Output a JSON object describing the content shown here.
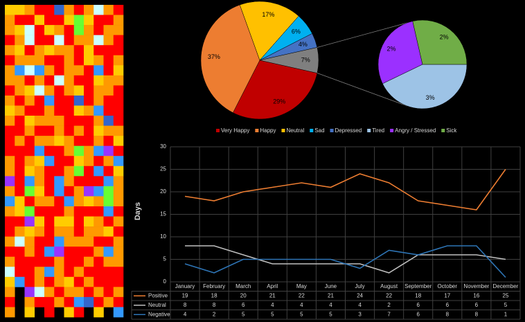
{
  "chart_data": [
    {
      "type": "heatmap",
      "colors": [
        "#ff0000",
        "#ff9900",
        "#ffcc00",
        "#3399ff",
        "#3366cc",
        "#ccffff",
        "#9933ff",
        "#66ff33"
      ],
      "values": [
        [
          2,
          2,
          1,
          0,
          0,
          4,
          1,
          0,
          1,
          5,
          1,
          0
        ],
        [
          1,
          0,
          0,
          2,
          0,
          0,
          2,
          7,
          2,
          0,
          0,
          1
        ],
        [
          1,
          2,
          5,
          0,
          2,
          1,
          0,
          7,
          1,
          0,
          1,
          1
        ],
        [
          0,
          1,
          5,
          0,
          0,
          5,
          0,
          1,
          1,
          5,
          1,
          0
        ],
        [
          1,
          2,
          0,
          1,
          2,
          1,
          1,
          0,
          2,
          0,
          0,
          0
        ],
        [
          0,
          1,
          1,
          1,
          0,
          0,
          1,
          0,
          2,
          1,
          0,
          1
        ],
        [
          1,
          3,
          5,
          3,
          1,
          0,
          1,
          1,
          0,
          3,
          0,
          2
        ],
        [
          1,
          1,
          0,
          1,
          0,
          5,
          1,
          0,
          0,
          2,
          1,
          1
        ],
        [
          0,
          1,
          2,
          5,
          1,
          0,
          1,
          2,
          0,
          1,
          1,
          0
        ],
        [
          1,
          0,
          1,
          0,
          3,
          0,
          0,
          4,
          0,
          1,
          0,
          0
        ],
        [
          2,
          1,
          0,
          0,
          1,
          0,
          0,
          2,
          1,
          3,
          0,
          0
        ],
        [
          1,
          0,
          2,
          1,
          1,
          1,
          0,
          0,
          0,
          1,
          4,
          0
        ],
        [
          0,
          0,
          1,
          0,
          0,
          1,
          0,
          1,
          0,
          2,
          1,
          1
        ],
        [
          0,
          1,
          0,
          1,
          1,
          2,
          1,
          0,
          0,
          1,
          0,
          2
        ],
        [
          0,
          0,
          0,
          3,
          0,
          0,
          1,
          7,
          1,
          3,
          6,
          0
        ],
        [
          1,
          0,
          1,
          2,
          3,
          0,
          0,
          2,
          1,
          0,
          1,
          3
        ],
        [
          1,
          0,
          2,
          1,
          0,
          0,
          1,
          7,
          0,
          3,
          0,
          2
        ],
        [
          6,
          0,
          3,
          1,
          0,
          3,
          1,
          0,
          0,
          0,
          3,
          1
        ],
        [
          1,
          0,
          7,
          2,
          0,
          3,
          0,
          1,
          6,
          3,
          7,
          1
        ],
        [
          3,
          2,
          0,
          1,
          1,
          0,
          3,
          1,
          2,
          1,
          7,
          1
        ],
        [
          1,
          2,
          7,
          0,
          0,
          0,
          1,
          0,
          0,
          0,
          3,
          0
        ],
        [
          0,
          0,
          6,
          2,
          0,
          2,
          2,
          0,
          2,
          1,
          0,
          1
        ],
        [
          0,
          1,
          2,
          1,
          0,
          1,
          1,
          0,
          1,
          1,
          2,
          0
        ],
        [
          1,
          5,
          1,
          0,
          0,
          3,
          1,
          1,
          1,
          0,
          0,
          1
        ],
        [
          0,
          0,
          1,
          0,
          3,
          6,
          0,
          0,
          0,
          1,
          3,
          1
        ],
        [
          1,
          0,
          0,
          0,
          0,
          1,
          0,
          0,
          1,
          0,
          1,
          1
        ],
        [
          5,
          0,
          0,
          1,
          3,
          1,
          0,
          1,
          0,
          0,
          0,
          0
        ],
        [
          2,
          3,
          0,
          1,
          0,
          1,
          2,
          0,
          1,
          0,
          0,
          0
        ],
        [
          1,
          null,
          6,
          5,
          1,
          0,
          1,
          1,
          0,
          1,
          0,
          1
        ],
        [
          0,
          null,
          1,
          0,
          0,
          1,
          0,
          3,
          4,
          0,
          1,
          0
        ],
        [
          1,
          null,
          2,
          null,
          0,
          null,
          2,
          0,
          null,
          2,
          null,
          3
        ]
      ]
    },
    {
      "type": "pie-of-pie",
      "categories": [
        "Very Happy",
        "Happy",
        "Neutral",
        "Sad",
        "Depressed",
        "Tired",
        "Angry / Stressed",
        "Sick"
      ],
      "values": [
        29,
        37,
        17,
        6,
        4,
        3,
        2,
        2
      ],
      "value_labels": [
        "29%",
        "37%",
        "17%",
        "6%",
        "4%",
        "3%",
        "2%",
        "2%"
      ],
      "colors": [
        "#c00000",
        "#ed7d31",
        "#ffc000",
        "#00b0f0",
        "#4472c4",
        "#9dc3e6",
        "#9b30ff",
        "#70ad47"
      ],
      "split": 5,
      "other": {
        "value": 7,
        "label": "7%",
        "color": "#7f7f7f"
      },
      "legend": "bottom"
    },
    {
      "type": "line",
      "y_label": "Days",
      "categories": [
        "January",
        "February",
        "March",
        "April",
        "May",
        "June",
        "July",
        "August",
        "September",
        "October",
        "November",
        "December"
      ],
      "series": [
        {
          "name": "Positive",
          "color": "#ed7d31",
          "values": [
            19,
            18,
            20,
            21,
            22,
            21,
            24,
            22,
            18,
            17,
            16,
            25
          ]
        },
        {
          "name": "Neutral",
          "color": "#bfbfbf",
          "values": [
            8,
            8,
            6,
            4,
            4,
            4,
            4,
            2,
            6,
            6,
            6,
            5
          ]
        },
        {
          "name": "Negative",
          "color": "#2e75b6",
          "values": [
            4,
            2,
            5,
            5,
            5,
            5,
            3,
            7,
            6,
            8,
            8,
            1
          ]
        }
      ],
      "ylim": [
        0,
        30
      ],
      "yticks": [
        0,
        5,
        10,
        15,
        20,
        25,
        30
      ],
      "grid": true,
      "data_table": true
    }
  ]
}
